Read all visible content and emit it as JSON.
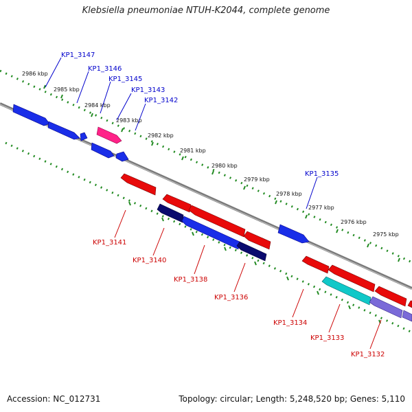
{
  "title": "Klebsiella pneumoniae NTUH-K2044, complete genome",
  "footer": {
    "accession": "Accession: NC_012731",
    "summary": "Topology: circular; Length: 5,248,520 bp; Genes: 5,110"
  },
  "colors": {
    "forward_label": "#0000cc",
    "reverse_label": "#cc0000",
    "backbone": "#8a8a8a",
    "ticks": "#228b22",
    "blue_gene": "#0a1ee0",
    "red_gene": "#e80a0a",
    "pink_gene": "#ff2288",
    "navy_gene": "#0a0a6e",
    "cyan_gene": "#10c8c8",
    "purple_gene": "#7a6ad8"
  },
  "scale_labels": [
    "2986 kbp",
    "2985 kbp",
    "2984 kbp",
    "2983 kbp",
    "2982 kbp",
    "2981 kbp",
    "2980 kbp",
    "2979 kbp",
    "2978 kbp",
    "2977 kbp",
    "2976 kbp",
    "2975 kbp"
  ],
  "forward_gene_labels": [
    "KP1_3147",
    "KP1_3146",
    "KP1_3145",
    "KP1_3143",
    "KP1_3142",
    "KP1_3135"
  ],
  "reverse_gene_labels": [
    "KP1_3141",
    "KP1_3140",
    "KP1_3138",
    "KP1_3136",
    "KP1_3134",
    "KP1_3133",
    "KP1_3132"
  ]
}
